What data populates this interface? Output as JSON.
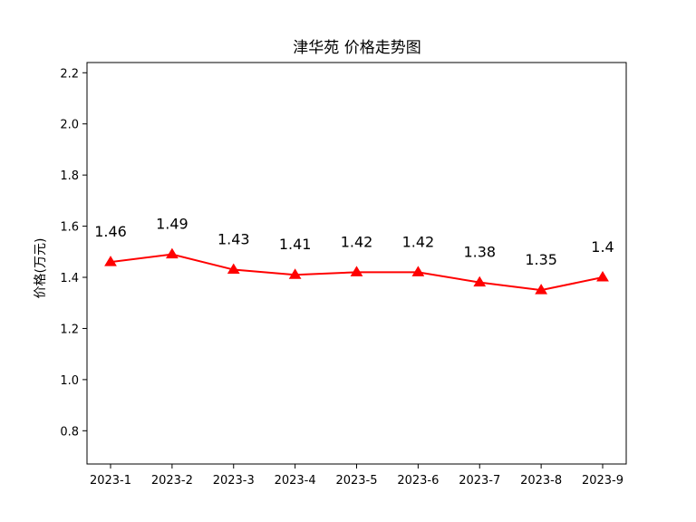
{
  "chart_data": {
    "type": "line",
    "title": "津华苑 价格走势图",
    "xlabel": "",
    "ylabel": "价格(万元)",
    "categories": [
      "2023-1",
      "2023-2",
      "2023-3",
      "2023-4",
      "2023-5",
      "2023-6",
      "2023-7",
      "2023-8",
      "2023-9"
    ],
    "series": [
      {
        "values": [
          1.46,
          1.49,
          1.43,
          1.41,
          1.42,
          1.42,
          1.38,
          1.35,
          1.4
        ],
        "data_labels": [
          "1.46",
          "1.49",
          "1.43",
          "1.41",
          "1.42",
          "1.42",
          "1.38",
          "1.35",
          "1.4"
        ],
        "color": "#ff0000",
        "marker": "triangle"
      }
    ],
    "ylim": [
      0.67,
      2.24
    ],
    "yticks": [
      0.8,
      1.0,
      1.2,
      1.4,
      1.6,
      1.8,
      2.0,
      2.2
    ],
    "ytick_labels": [
      "0.8",
      "1.0",
      "1.2",
      "1.4",
      "1.6",
      "1.8",
      "2.0",
      "2.2"
    ],
    "grid": false,
    "legend": "none"
  }
}
